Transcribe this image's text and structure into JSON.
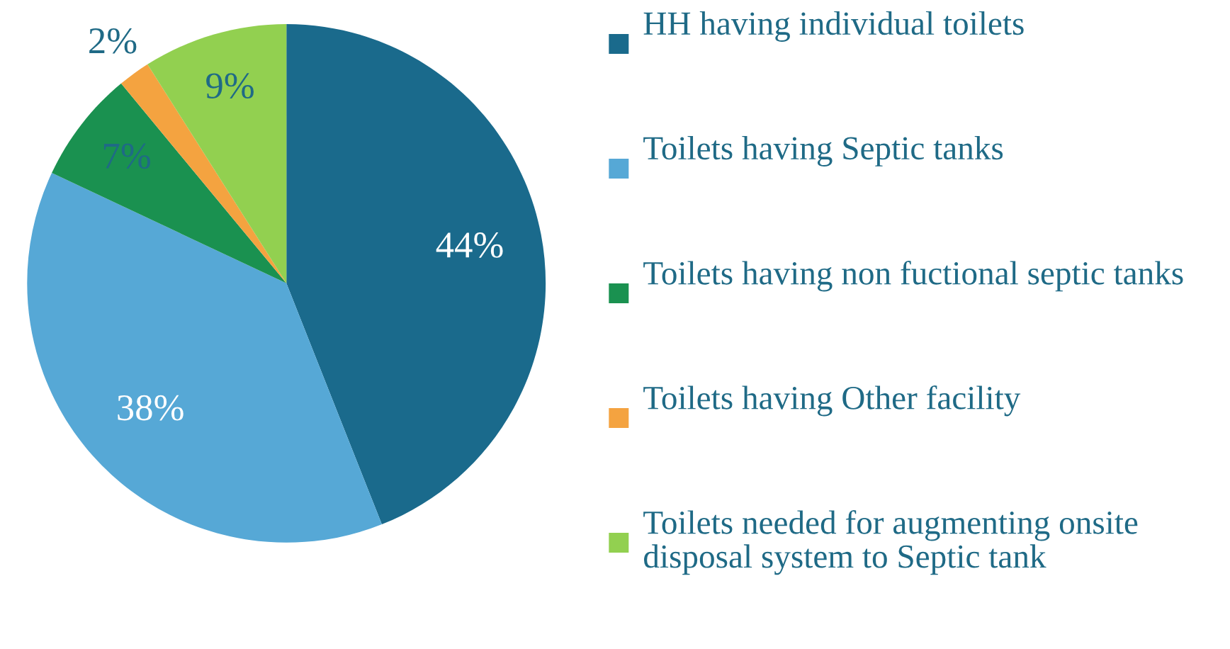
{
  "chart_data": {
    "type": "pie",
    "categories": [
      "HH having individual toilets",
      "Toilets having Septic tanks",
      "Toilets having non fuctional septic tanks",
      "Toilets having Other facility",
      "Toilets needed for augmenting onsite disposal system to Septic tank"
    ],
    "values": [
      44,
      38,
      7,
      2,
      9
    ],
    "colors": [
      "#1a6a8c",
      "#56a8d6",
      "#1a9150",
      "#f4a340",
      "#92d050"
    ],
    "value_labels": [
      "44%",
      "38%",
      "7%",
      "2%",
      "9%"
    ],
    "legend": "right"
  }
}
